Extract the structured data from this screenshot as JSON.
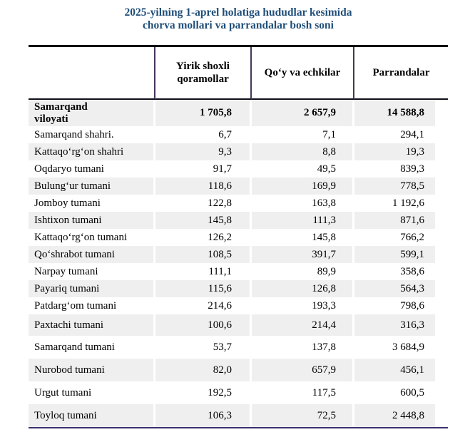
{
  "title": {
    "line1": "2025-yilning 1-aprel holatiga hududlar kesimida",
    "line2": "chorva mollari va parrandalar bosh soni"
  },
  "table": {
    "columns": [
      "",
      "Yirik shoxli qoramollar",
      "Qoʻy va echkilar",
      "Parrandalar"
    ],
    "rows": [
      {
        "name": "Samarqand\nviloyati",
        "values": [
          "1 705,8",
          "2 657,9",
          "14 588,8"
        ],
        "bold": true
      },
      {
        "name": "Samarqand shahri.",
        "values": [
          "6,7",
          "7,1",
          "294,1"
        ]
      },
      {
        "name": "Kattaqoʻrgʻon shahri",
        "values": [
          "9,3",
          "8,8",
          "19,3"
        ]
      },
      {
        "name": "Oqdaryo tumani",
        "values": [
          "91,7",
          "49,5",
          "839,3"
        ]
      },
      {
        "name": "Bulungʻur tumani",
        "values": [
          "118,6",
          "169,9",
          "778,5"
        ]
      },
      {
        "name": "Jomboy tumani",
        "values": [
          "122,8",
          "163,8",
          "1 192,6"
        ]
      },
      {
        "name": "Ishtixon tumani",
        "values": [
          "145,8",
          "111,3",
          "871,6"
        ]
      },
      {
        "name": "Kattaqoʻrgʻon tumani",
        "values": [
          "126,2",
          "145,8",
          "766,2"
        ]
      },
      {
        "name": "Qoʻshrabot tumani",
        "values": [
          "108,5",
          "391,7",
          "599,1"
        ]
      },
      {
        "name": "Narpay tumani",
        "values": [
          "111,1",
          "89,9",
          "358,6"
        ]
      },
      {
        "name": "Payariq tumani",
        "values": [
          "115,6",
          "126,8",
          "564,3"
        ]
      },
      {
        "name": "Patdargʻom tumani",
        "values": [
          "214,6",
          "193,3",
          "798,6"
        ]
      },
      {
        "name": "Paxtachi tumani",
        "values": [
          "100,6",
          "214,4",
          "316,3"
        ]
      },
      {
        "name": "Samarqand tumani",
        "values": [
          "53,7",
          "137,8",
          "3 684,9"
        ]
      },
      {
        "name": "Nurobod tumani",
        "values": [
          "82,0",
          "657,9",
          "456,1"
        ]
      },
      {
        "name": "Urgut tumani",
        "values": [
          "192,5",
          "117,5",
          "600,5"
        ]
      },
      {
        "name": "Toyloq tumani",
        "values": [
          "106,3",
          "72,5",
          "2 448,8"
        ]
      }
    ]
  },
  "colors": {
    "title_blue": "#1f4e79",
    "row_shading": "#f0eff0",
    "header_divider_purple": "#463659",
    "bottom_border_purple": "#3a3170",
    "top_border_black": "#000000"
  }
}
